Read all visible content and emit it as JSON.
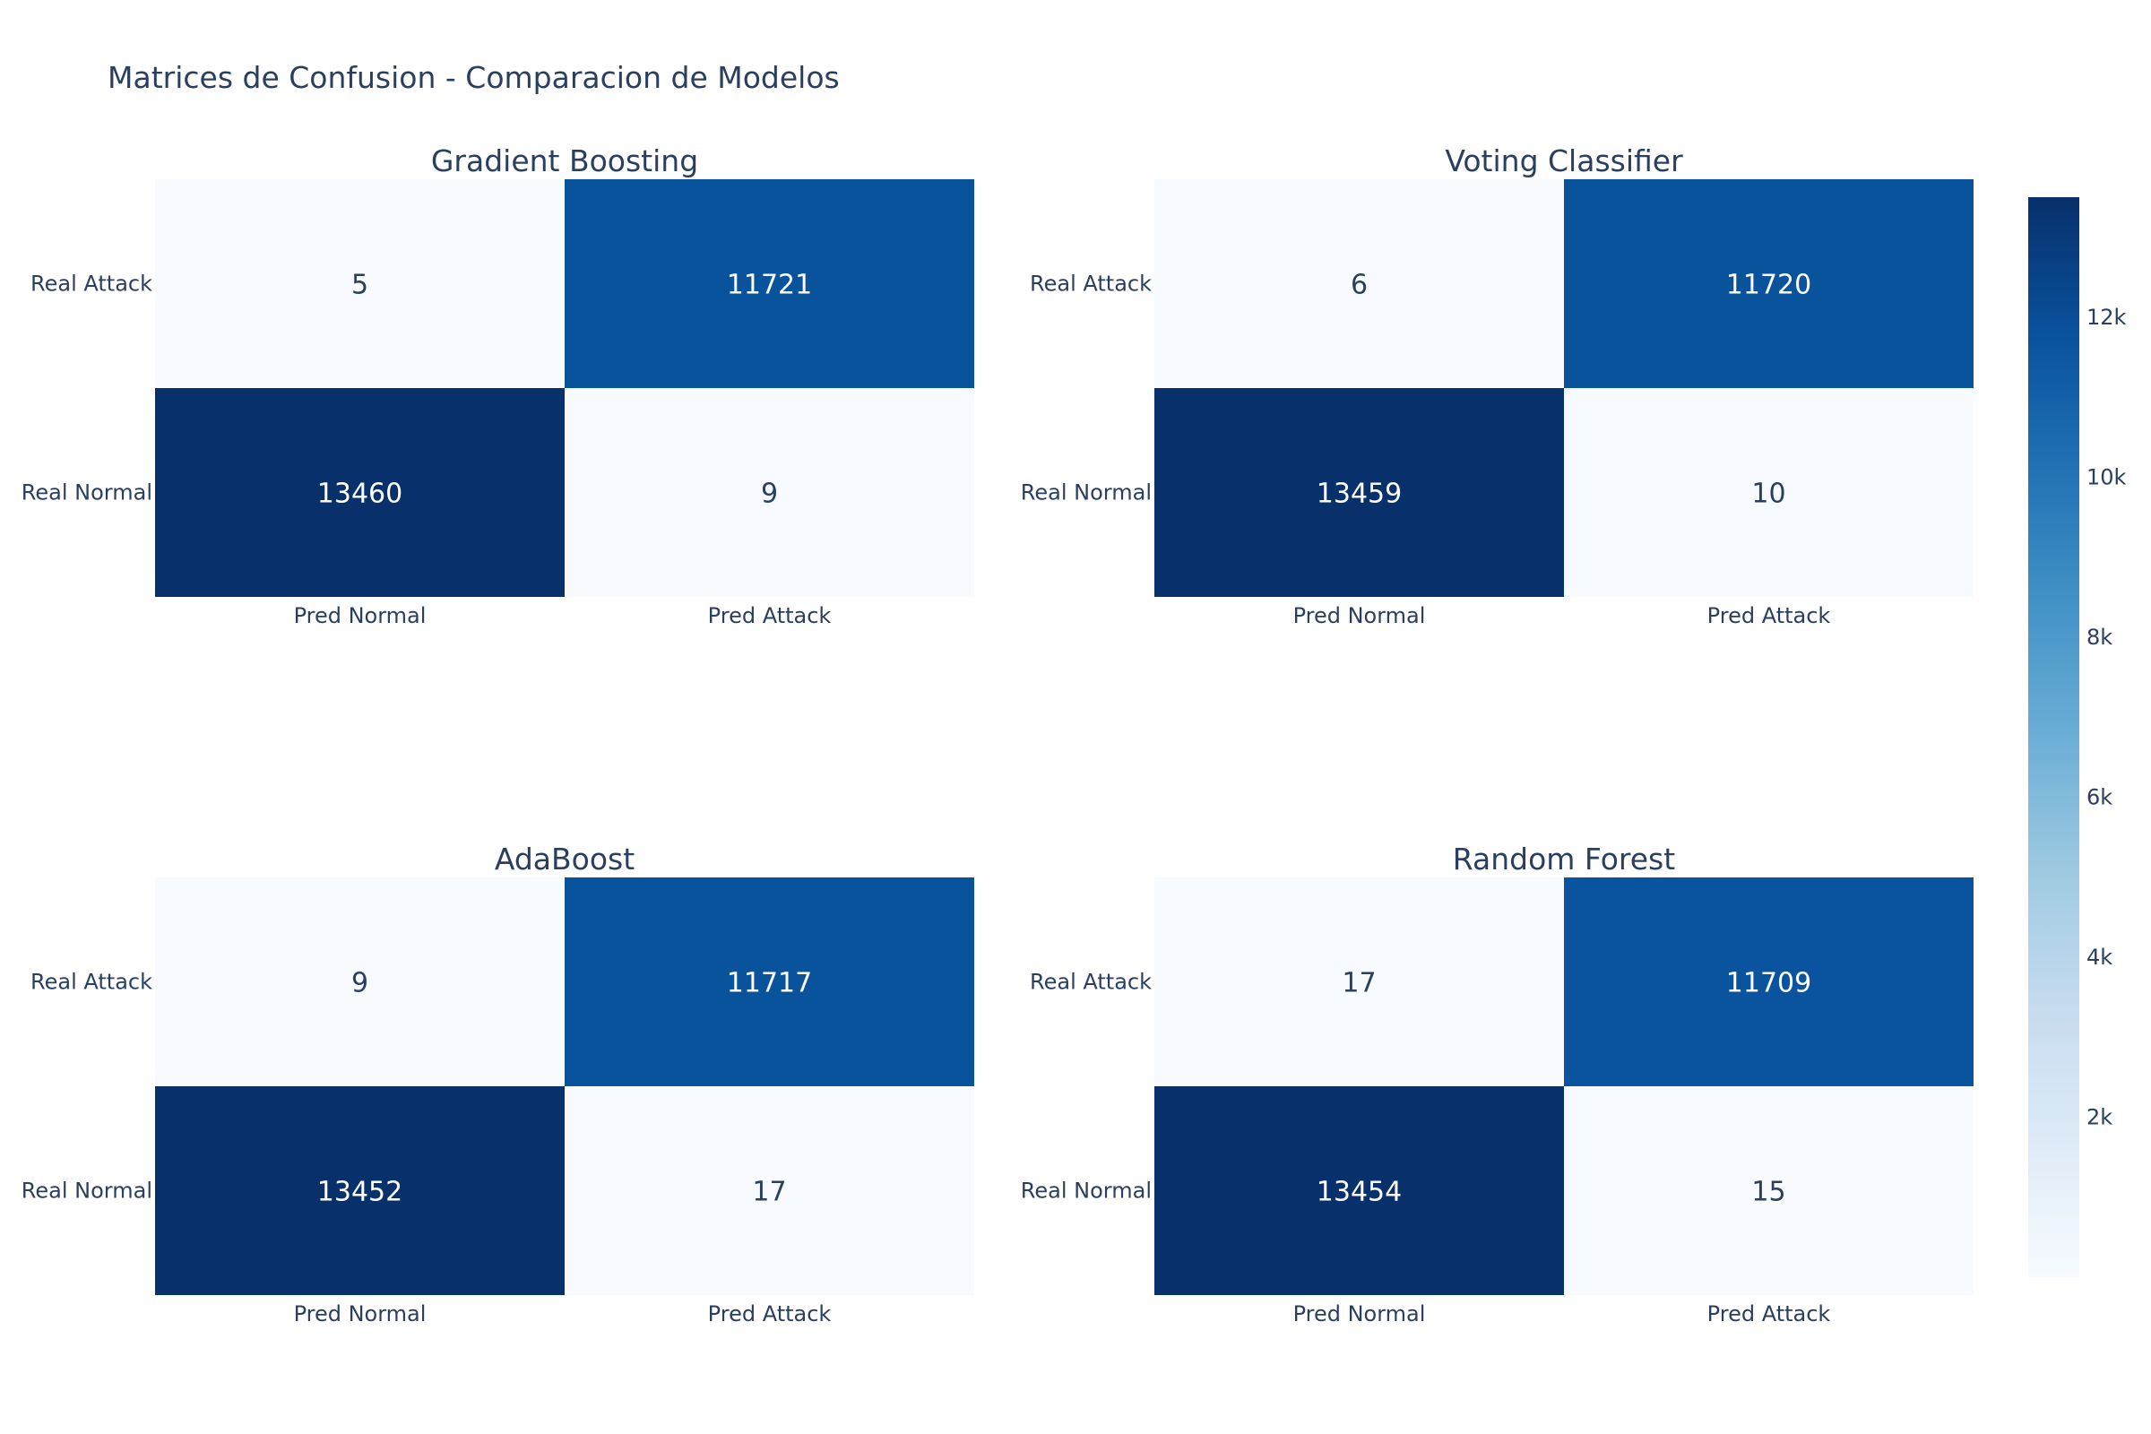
{
  "title": "Matrices de Confusion - Comparacion de Modelos",
  "chart_data": {
    "type": "heatmap",
    "title": "Matrices de Confusion - Comparacion de Modelos",
    "x_categories": [
      "Pred Normal",
      "Pred Attack"
    ],
    "y_categories": [
      "Real Normal",
      "Real Attack"
    ],
    "colorscale": "Blues",
    "color_range": [
      0,
      13500
    ],
    "colorbar_ticks": [
      2000,
      4000,
      6000,
      8000,
      10000,
      12000
    ],
    "colorbar_tick_labels": [
      "2k",
      "4k",
      "6k",
      "8k",
      "10k",
      "12k"
    ],
    "panels": [
      {
        "name": "Gradient Boosting",
        "matrix": [
          [
            13460,
            9
          ],
          [
            5,
            11721
          ]
        ]
      },
      {
        "name": "Voting Classifier",
        "matrix": [
          [
            13459,
            10
          ],
          [
            6,
            11720
          ]
        ]
      },
      {
        "name": "AdaBoost",
        "matrix": [
          [
            13452,
            17
          ],
          [
            9,
            11717
          ]
        ]
      },
      {
        "name": "Random Forest",
        "matrix": [
          [
            13454,
            15
          ],
          [
            17,
            11709
          ]
        ]
      }
    ]
  }
}
